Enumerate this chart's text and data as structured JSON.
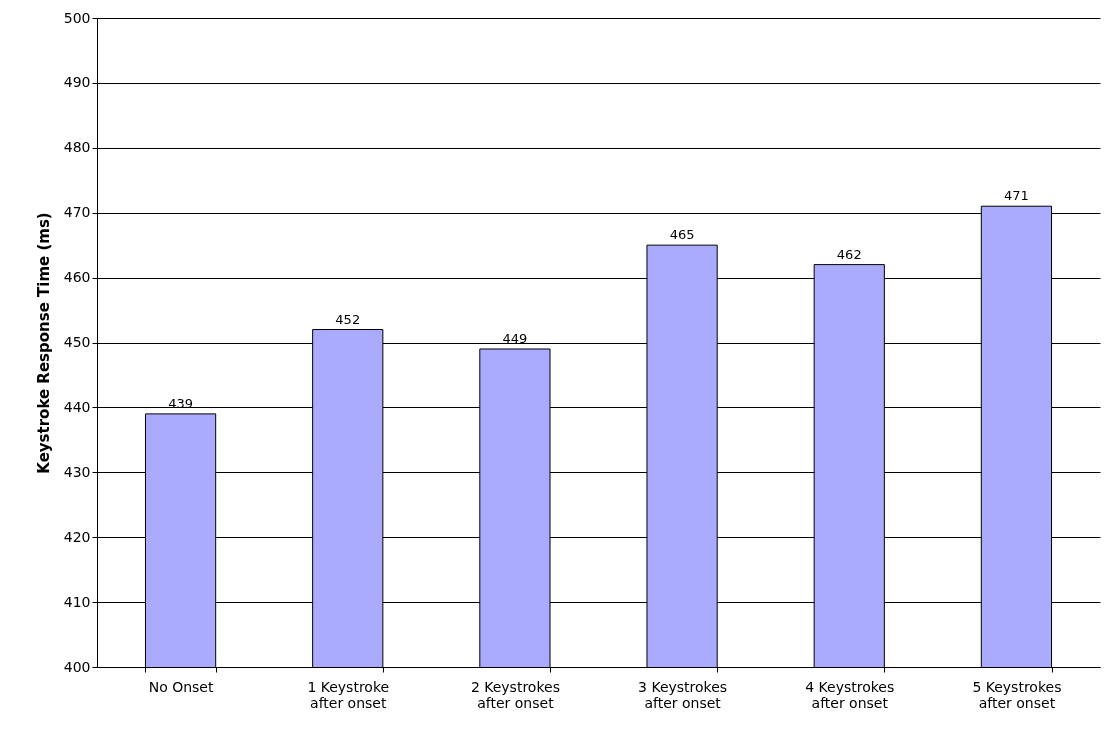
{
  "chart_data": {
    "type": "bar",
    "ylabel": "Keystroke Response Time (ms)",
    "categories": [
      "No Onset",
      "1 Keystroke after onset",
      "2 Keystrokes after onset",
      "3 Keystrokes after onset",
      "4 Keystrokes after onset",
      "5 Keystrokes after onset"
    ],
    "values": [
      439,
      452,
      449,
      465,
      462,
      471
    ],
    "color": "#aaaaff",
    "ylim": [
      400,
      500
    ],
    "yticks": [
      400,
      410,
      420,
      430,
      440,
      450,
      460,
      470,
      480,
      490,
      500
    ],
    "grid": "y",
    "data_labels": true
  }
}
